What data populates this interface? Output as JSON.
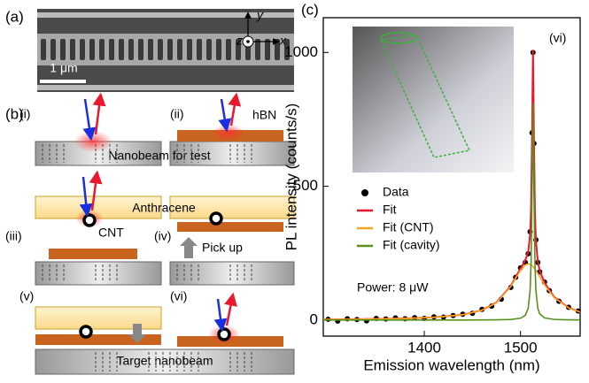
{
  "figure": {
    "panel_a": "(a)",
    "scale_bar": "1 μm",
    "axis_x": "x",
    "axis_y": "y",
    "axis_z": "z",
    "panel_b": "(b)",
    "step_i": "(i)",
    "step_ii": "(ii)",
    "hbn": "hBN",
    "nanobeam_test": "Nanobeam for test",
    "anthracene": "Anthracene",
    "cnt": "CNT",
    "step_iii": "(iii)",
    "step_iv": "(iv)",
    "pick_up": "Pick up",
    "step_v": "(v)",
    "step_vi": "(vi)",
    "target_nanobeam": "Target nanobeam"
  },
  "chart_data": {
    "type": "line",
    "panel_label": "(c)",
    "x_label": "Emission wavelength (nm)",
    "y_label": "PL intensity (counts/s)",
    "annotations": [
      "(vi)",
      "Power: 8 μW"
    ],
    "xlim": [
      1295,
      1562
    ],
    "xticks": [
      1400,
      1500
    ],
    "ylim": [
      -60,
      1130
    ],
    "yticks": [
      0,
      500,
      1000
    ],
    "series": [
      {
        "name": "Data",
        "mode": "markers",
        "color": "#000000",
        "x": [
          1300,
          1310,
          1320,
          1330,
          1340,
          1350,
          1360,
          1370,
          1380,
          1390,
          1400,
          1410,
          1420,
          1430,
          1440,
          1450,
          1460,
          1470,
          1480,
          1490,
          1495,
          1500,
          1505,
          1508,
          1510,
          1512,
          1513,
          1514,
          1516,
          1518,
          1520,
          1525,
          1530,
          1540,
          1550,
          1560
        ],
        "values": [
          3,
          -4,
          5,
          2,
          -3,
          6,
          4,
          8,
          5,
          9,
          6,
          12,
          11,
          17,
          22,
          25,
          40,
          52,
          78,
          122,
          160,
          195,
          215,
          248,
          330,
          700,
          1000,
          660,
          300,
          215,
          180,
          142,
          110,
          70,
          48,
          34
        ]
      },
      {
        "name": "Fit",
        "mode": "lines",
        "color": "#e8192c",
        "x": [
          1295,
          1320,
          1350,
          1380,
          1410,
          1440,
          1460,
          1475,
          1490,
          1500,
          1505,
          1508,
          1510,
          1511,
          1512,
          1513,
          1514,
          1515,
          1516,
          1518,
          1520,
          1525,
          1535,
          1550,
          1562
        ],
        "values": [
          2.2,
          2.8,
          4.0,
          6.1,
          10.2,
          20.1,
          36.9,
          65.4,
          128.0,
          192.4,
          224.0,
          254.1,
          320.0,
          420.5,
          681.4,
          1009.7,
          673.6,
          405.0,
          297.2,
          218.1,
          184.9,
          139.5,
          86.2,
          46.1,
          30.4
        ]
      },
      {
        "name": "Fit (CNT)",
        "mode": "lines",
        "color": "#f5a623",
        "x": [
          1295,
          1320,
          1350,
          1380,
          1410,
          1440,
          1460,
          1475,
          1490,
          1500,
          1505,
          1508,
          1510,
          1511,
          1512,
          1513,
          1514,
          1515,
          1516,
          1518,
          1520,
          1525,
          1535,
          1550,
          1562
        ],
        "values": [
          2.2,
          2.8,
          4.0,
          6.0,
          10.1,
          19.9,
          36.5,
          64.6,
          125.8,
          185.5,
          206.2,
          210,
          208.3,
          206.2,
          203.3,
          199.7,
          195.5,
          190.7,
          185.5,
          174.0,
          161.8,
          131.5,
          83.8,
          45.2,
          29.9
        ]
      },
      {
        "name": "Fit (cavity)",
        "mode": "lines",
        "color": "#5a8f1e",
        "x": [
          1295,
          1320,
          1350,
          1380,
          1410,
          1440,
          1460,
          1475,
          1490,
          1500,
          1505,
          1508,
          1510,
          1511,
          1512,
          1513,
          1514,
          1515,
          1516,
          1518,
          1520,
          1525,
          1535,
          1550,
          1562
        ],
        "values": [
          0.03,
          0.03,
          0.04,
          0.07,
          0.1,
          0.2,
          0.4,
          0.8,
          2.2,
          6.9,
          17.8,
          44.1,
          111.7,
          214.3,
          478.1,
          810,
          478.1,
          214.3,
          111.7,
          44.1,
          23.1,
          8.0,
          2.4,
          0.85,
          0.49
        ]
      }
    ]
  }
}
